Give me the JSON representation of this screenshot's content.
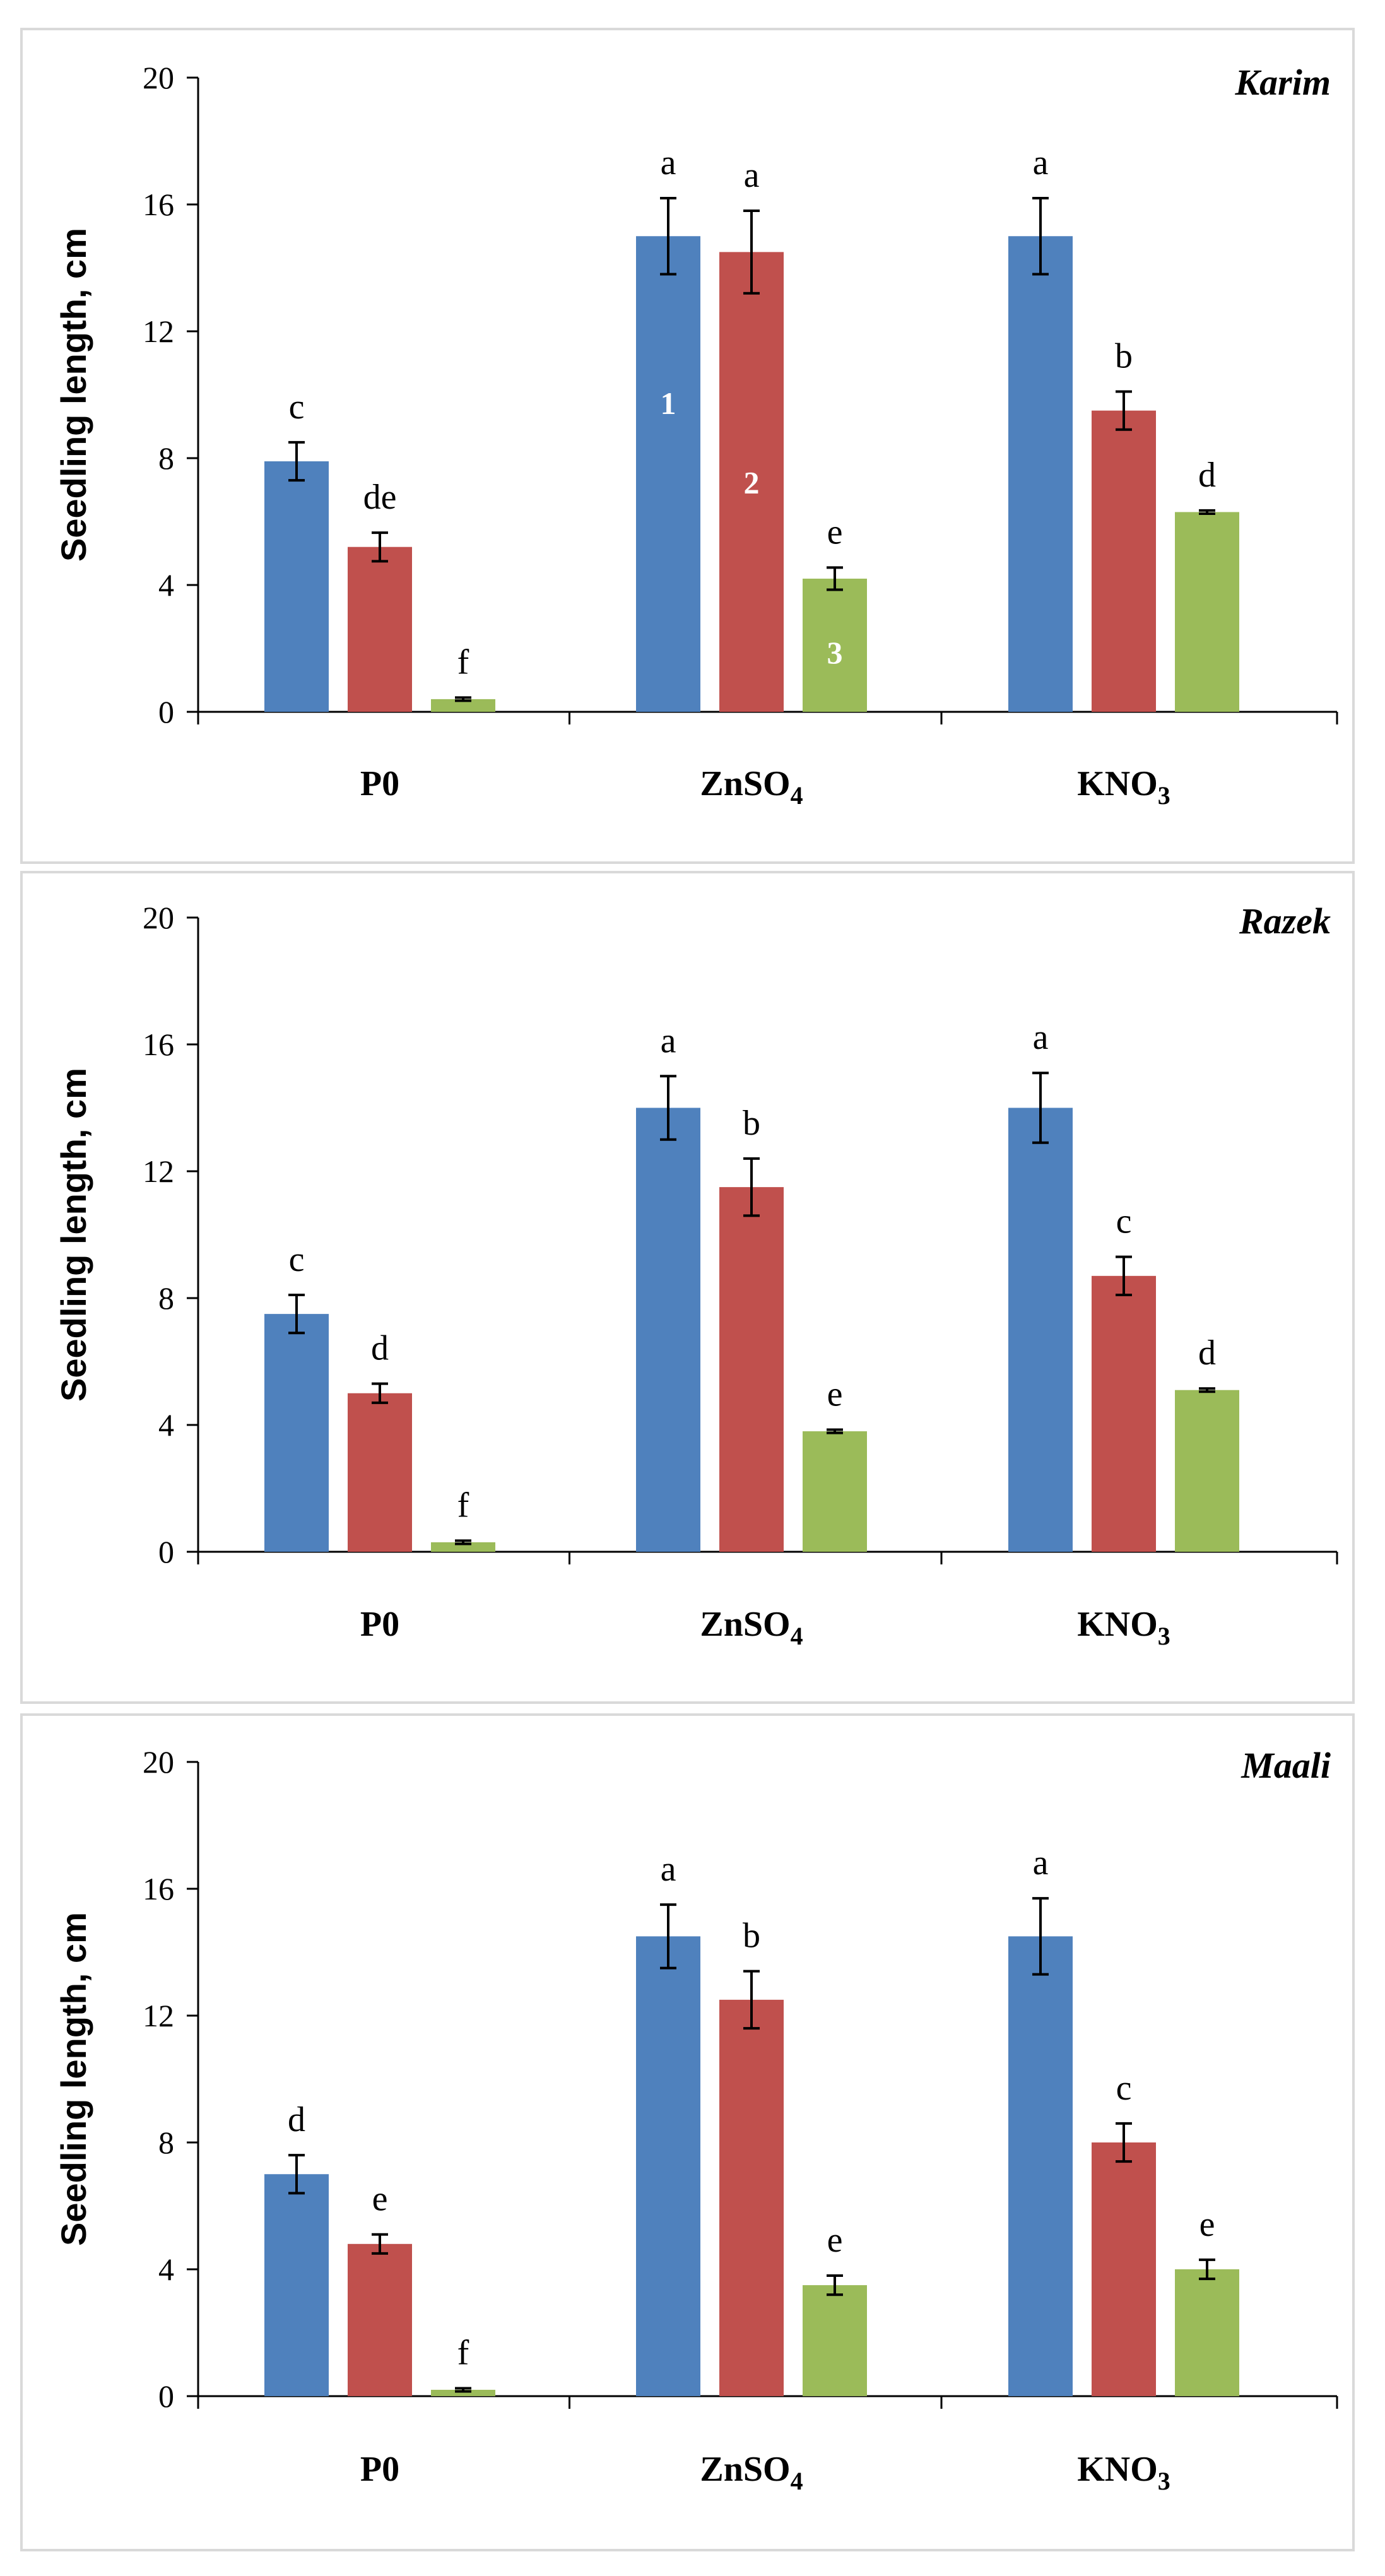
{
  "chart_data": [
    {
      "type": "bar",
      "title": "Karim",
      "ylabel": "Seedling  length, cm",
      "xlabel": "",
      "ylim": [
        0,
        20
      ],
      "yticks": [
        "0",
        "4",
        "8",
        "12",
        "16",
        "20"
      ],
      "categories": [
        {
          "label": "P0",
          "sub": ""
        },
        {
          "label": "ZnSO",
          "sub": "4"
        },
        {
          "label": "KNO",
          "sub": "3"
        }
      ],
      "series": [
        {
          "name": "1",
          "color": "#4f81bd",
          "values": [
            7.9,
            15.0,
            15.0
          ],
          "errors": [
            0.6,
            1.2,
            1.2
          ],
          "letters": [
            "c",
            "a",
            "a"
          ]
        },
        {
          "name": "2",
          "color": "#c0504d",
          "values": [
            5.2,
            14.5,
            9.5
          ],
          "errors": [
            0.45,
            1.3,
            0.6
          ],
          "letters": [
            "de",
            "a",
            "b"
          ]
        },
        {
          "name": "3",
          "color": "#9bbb59",
          "values": [
            0.4,
            4.2,
            6.3
          ],
          "errors": [
            0.05,
            0.35,
            0.05
          ],
          "letters": [
            "f",
            "e",
            "d"
          ]
        }
      ],
      "bar_numbers": [
        "1",
        "2",
        "3"
      ]
    },
    {
      "type": "bar",
      "title": "Razek",
      "ylabel": "Seedling  length, cm",
      "xlabel": "",
      "ylim": [
        0,
        20
      ],
      "yticks": [
        "0",
        "4",
        "8",
        "12",
        "16",
        "20"
      ],
      "categories": [
        {
          "label": "P0",
          "sub": ""
        },
        {
          "label": "ZnSO",
          "sub": "4"
        },
        {
          "label": "KNO",
          "sub": "3"
        }
      ],
      "series": [
        {
          "name": "1",
          "color": "#4f81bd",
          "values": [
            7.5,
            14.0,
            14.0
          ],
          "errors": [
            0.6,
            1.0,
            1.1
          ],
          "letters": [
            "c",
            "a",
            "a"
          ]
        },
        {
          "name": "2",
          "color": "#c0504d",
          "values": [
            5.0,
            11.5,
            8.7
          ],
          "errors": [
            0.3,
            0.9,
            0.6
          ],
          "letters": [
            "d",
            "b",
            "c"
          ]
        },
        {
          "name": "3",
          "color": "#9bbb59",
          "values": [
            0.3,
            3.8,
            5.1
          ],
          "errors": [
            0.05,
            0.05,
            0.05
          ],
          "letters": [
            "f",
            "e",
            "d"
          ]
        }
      ],
      "bar_numbers": []
    },
    {
      "type": "bar",
      "title": "Maali",
      "ylabel": "Seedling  length, cm",
      "xlabel": "",
      "ylim": [
        0,
        20
      ],
      "yticks": [
        "0",
        "4",
        "8",
        "12",
        "16",
        "20"
      ],
      "categories": [
        {
          "label": "P0",
          "sub": ""
        },
        {
          "label": "ZnSO",
          "sub": "4"
        },
        {
          "label": "KNO",
          "sub": "3"
        }
      ],
      "series": [
        {
          "name": "1",
          "color": "#4f81bd",
          "values": [
            7.0,
            14.5,
            14.5
          ],
          "errors": [
            0.6,
            1.0,
            1.2
          ],
          "letters": [
            "d",
            "a",
            "a"
          ]
        },
        {
          "name": "2",
          "color": "#c0504d",
          "values": [
            4.8,
            12.5,
            8.0
          ],
          "errors": [
            0.3,
            0.9,
            0.6
          ],
          "letters": [
            "e",
            "b",
            "c"
          ]
        },
        {
          "name": "3",
          "color": "#9bbb59",
          "values": [
            0.2,
            3.5,
            4.0
          ],
          "errors": [
            0.05,
            0.3,
            0.3
          ],
          "letters": [
            "f",
            "e",
            "e"
          ]
        }
      ],
      "bar_numbers": []
    }
  ]
}
